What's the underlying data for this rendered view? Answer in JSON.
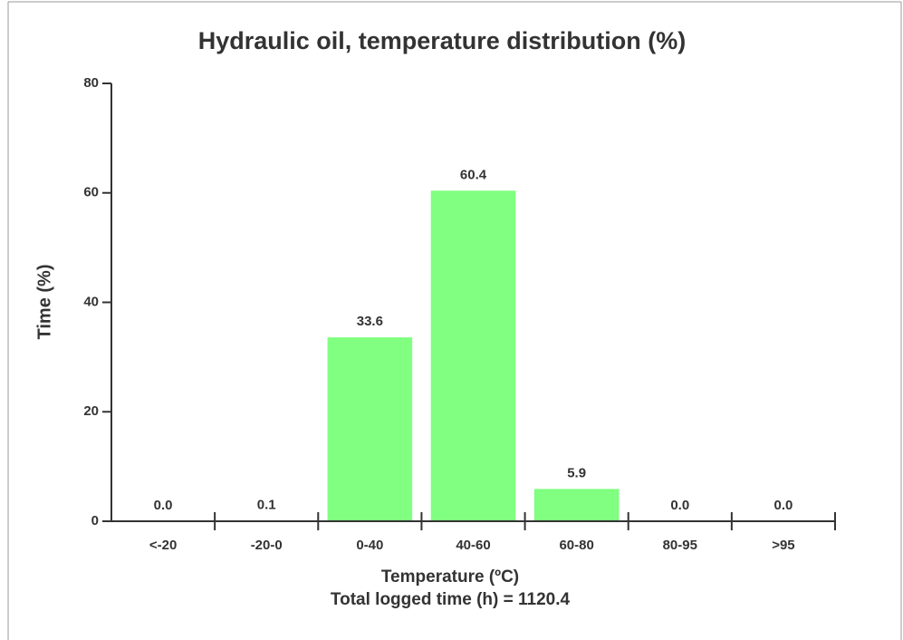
{
  "chart_data": {
    "type": "bar",
    "title": "Hydraulic oil, temperature distribution (%)",
    "ylabel": "Time (%)",
    "xlabel": "Temperature (ºC)",
    "annotation": "Total logged time (h) = 1120.4",
    "categories": [
      "<-20",
      "-20-0",
      "0-40",
      "40-60",
      "60-80",
      "80-95",
      ">95"
    ],
    "values": [
      0,
      0.1,
      33.6,
      60.4,
      5.9,
      0,
      0
    ],
    "value_labels": [
      "0.0",
      "0.1",
      "33.6",
      "60.4",
      "5.9",
      "0.0",
      "0.0"
    ],
    "color": "#80ff80",
    "ylim": [
      0,
      80
    ],
    "yticks": [
      0,
      20,
      40,
      60,
      80
    ],
    "grid": false
  }
}
